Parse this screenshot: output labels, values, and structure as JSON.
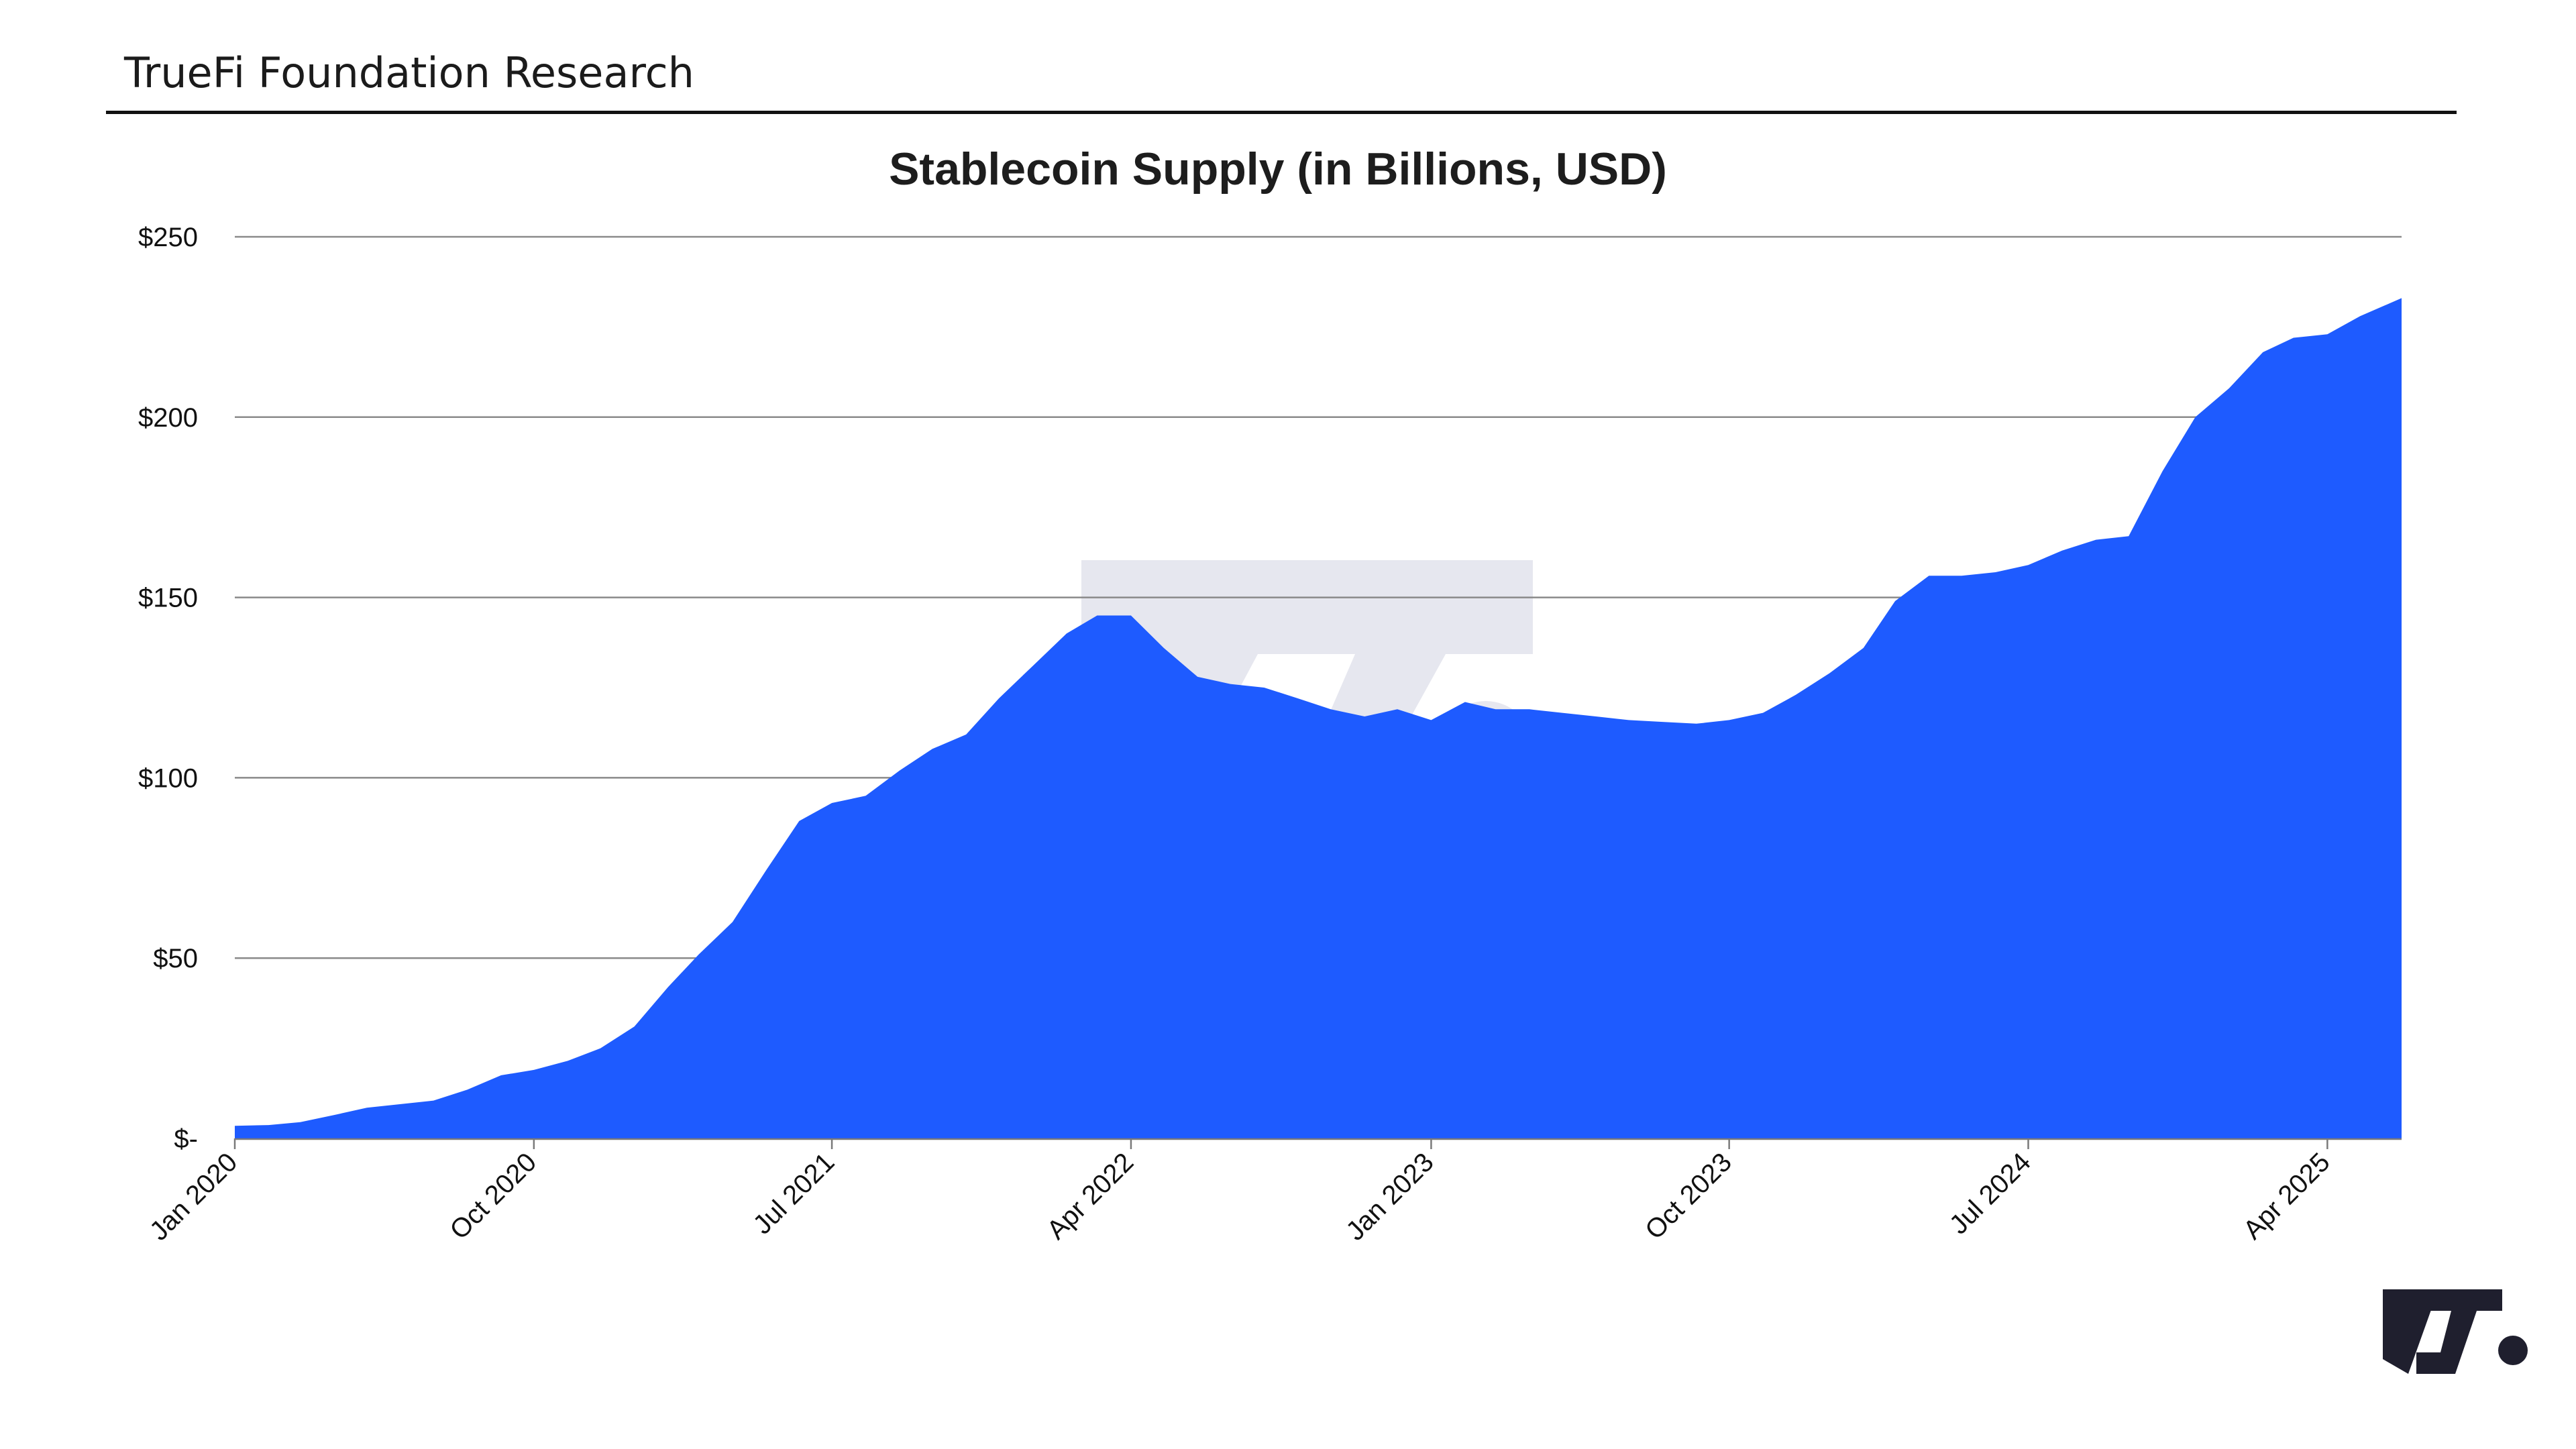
{
  "header": {
    "title": "TrueFi Foundation Research"
  },
  "logo": {
    "icon": "truefi-logo-icon",
    "color": "#1f1f2e"
  },
  "watermark": {
    "icon": "truefi-watermark-icon",
    "color": "#e6e7ef"
  },
  "colors": {
    "area": "#1e5bff",
    "grid": "#8a8a8a",
    "text": "#111111"
  },
  "chart_data": {
    "type": "area",
    "title": "Stablecoin Supply (in Billions, USD)",
    "xlabel": "",
    "ylabel": "",
    "ylim": [
      0,
      250
    ],
    "xlim": [
      "2020-01-01",
      "2025-06-08"
    ],
    "grid": true,
    "legend": "none",
    "y_ticks": [
      {
        "value": 0,
        "label": "$-"
      },
      {
        "value": 50,
        "label": "$50"
      },
      {
        "value": 100,
        "label": "$100"
      },
      {
        "value": 150,
        "label": "$150"
      },
      {
        "value": 200,
        "label": "$200"
      },
      {
        "value": 250,
        "label": "$250"
      }
    ],
    "x_ticks": [
      {
        "date": "2020-01-01",
        "label": "Jan 2020"
      },
      {
        "date": "2020-10-01",
        "label": "Oct 2020"
      },
      {
        "date": "2021-07-01",
        "label": "Jul 2021"
      },
      {
        "date": "2022-04-01",
        "label": "Apr 2022"
      },
      {
        "date": "2023-01-01",
        "label": "Jan 2023"
      },
      {
        "date": "2023-10-01",
        "label": "Oct 2023"
      },
      {
        "date": "2024-07-01",
        "label": "Jul 2024"
      },
      {
        "date": "2025-04-01",
        "label": "Apr 2025"
      }
    ],
    "series": [
      {
        "points": [
          [
            "2020-01-01",
            3.5
          ],
          [
            "2020-02-01",
            3.7
          ],
          [
            "2020-03-01",
            4.5
          ],
          [
            "2020-04-01",
            6.5
          ],
          [
            "2020-05-01",
            8.5
          ],
          [
            "2020-06-01",
            9.5
          ],
          [
            "2020-07-01",
            10.5
          ],
          [
            "2020-08-01",
            13.5
          ],
          [
            "2020-09-01",
            17.5
          ],
          [
            "2020-10-01",
            19.0
          ],
          [
            "2020-11-01",
            21.5
          ],
          [
            "2020-12-01",
            25.0
          ],
          [
            "2021-01-01",
            31.0
          ],
          [
            "2021-02-01",
            42.0
          ],
          [
            "2021-03-01",
            51.0
          ],
          [
            "2021-04-01",
            60.0
          ],
          [
            "2021-05-01",
            74.0
          ],
          [
            "2021-06-01",
            88.0
          ],
          [
            "2021-07-01",
            93.0
          ],
          [
            "2021-08-01",
            95.0
          ],
          [
            "2021-09-01",
            102.0
          ],
          [
            "2021-10-01",
            108.0
          ],
          [
            "2021-11-01",
            112.0
          ],
          [
            "2021-12-01",
            122.0
          ],
          [
            "2022-01-01",
            131.0
          ],
          [
            "2022-02-01",
            140.0
          ],
          [
            "2022-03-01",
            145.0
          ],
          [
            "2022-04-01",
            145.0
          ],
          [
            "2022-05-01",
            136.0
          ],
          [
            "2022-06-01",
            128.0
          ],
          [
            "2022-07-01",
            126.0
          ],
          [
            "2022-08-01",
            125.0
          ],
          [
            "2022-09-01",
            122.0
          ],
          [
            "2022-10-01",
            119.0
          ],
          [
            "2022-11-01",
            117.0
          ],
          [
            "2022-12-01",
            119.0
          ],
          [
            "2023-01-01",
            116.0
          ],
          [
            "2023-02-01",
            121.0
          ],
          [
            "2023-03-01",
            119.0
          ],
          [
            "2023-04-01",
            119.0
          ],
          [
            "2023-05-01",
            118.0
          ],
          [
            "2023-06-01",
            117.0
          ],
          [
            "2023-07-01",
            116.0
          ],
          [
            "2023-08-01",
            115.5
          ],
          [
            "2023-09-01",
            115.0
          ],
          [
            "2023-10-01",
            116.0
          ],
          [
            "2023-11-01",
            118.0
          ],
          [
            "2023-12-01",
            123.0
          ],
          [
            "2024-01-01",
            129.0
          ],
          [
            "2024-02-01",
            136.0
          ],
          [
            "2024-03-01",
            149.0
          ],
          [
            "2024-04-01",
            156.0
          ],
          [
            "2024-05-01",
            156.0
          ],
          [
            "2024-06-01",
            157.0
          ],
          [
            "2024-07-01",
            159.0
          ],
          [
            "2024-08-01",
            163.0
          ],
          [
            "2024-09-01",
            166.0
          ],
          [
            "2024-10-01",
            167.0
          ],
          [
            "2024-11-01",
            185.0
          ],
          [
            "2024-12-01",
            200.0
          ],
          [
            "2025-01-01",
            208.0
          ],
          [
            "2025-02-01",
            218.0
          ],
          [
            "2025-03-01",
            222.0
          ],
          [
            "2025-04-01",
            223.0
          ],
          [
            "2025-05-01",
            228.0
          ],
          [
            "2025-06-08",
            233.0
          ]
        ]
      }
    ]
  }
}
